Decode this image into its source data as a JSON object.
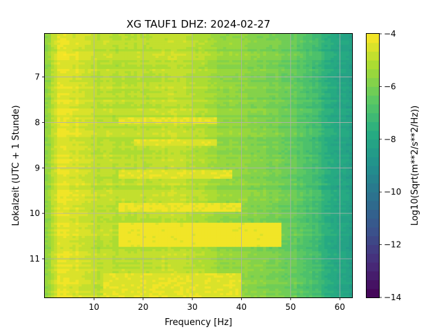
{
  "chart_data": {
    "type": "heatmap",
    "title": "XG TAUF1  DHZ: 2024-02-27",
    "xlabel": "Frequency [Hz]",
    "ylabel": "Lokalzeit (UTC + 1 Stunde)",
    "xlim": [
      0,
      62.5
    ],
    "ylim": [
      11.85,
      6.05
    ],
    "y_inverted": true,
    "x_ticks": [
      10,
      20,
      30,
      40,
      50,
      60
    ],
    "x_tick_labels": [
      "10",
      "20",
      "30",
      "40",
      "50",
      "60"
    ],
    "y_ticks": [
      7,
      8,
      9,
      10,
      11
    ],
    "y_tick_labels": [
      "7",
      "8",
      "9",
      "10",
      "11"
    ],
    "grid": true,
    "colormap": "viridis",
    "colorbar": {
      "label": "Log10(Sqrt(m**2/s**2/Hz))",
      "range": [
        -14,
        -4
      ],
      "ticks": [
        -4,
        -6,
        -8,
        -10,
        -12,
        -14
      ],
      "tick_labels": [
        "−4",
        "−6",
        "−8",
        "−10",
        "−12",
        "−14"
      ],
      "levels": 30
    },
    "frequency_profile": {
      "frequency_hz": [
        0.5,
        3,
        6,
        10,
        15,
        20,
        25,
        30,
        33,
        35,
        40,
        45,
        50,
        53,
        56,
        58,
        60,
        62.5
      ],
      "value": [
        -5.6,
        -4.3,
        -4.5,
        -4.9,
        -5.0,
        -5.0,
        -4.9,
        -5.0,
        -5.2,
        -5.5,
        -5.7,
        -5.9,
        -6.2,
        -6.7,
        -7.2,
        -7.7,
        -8.0,
        -8.3
      ]
    },
    "high_energy_bands": [
      {
        "time": [
          7.9,
          8.05
        ],
        "frequency_hz": [
          15,
          35
        ],
        "value": -4.3
      },
      {
        "time": [
          8.35,
          8.5
        ],
        "frequency_hz": [
          18,
          35
        ],
        "value": -4.4
      },
      {
        "time": [
          9.05,
          9.25
        ],
        "frequency_hz": [
          15,
          38
        ],
        "value": -4.4
      },
      {
        "time": [
          9.75,
          9.95
        ],
        "frequency_hz": [
          15,
          40
        ],
        "value": -4.3
      },
      {
        "time": [
          10.2,
          10.75
        ],
        "frequency_hz": [
          15,
          48
        ],
        "value": -4.2
      },
      {
        "time": [
          11.3,
          11.85
        ],
        "frequency_hz": [
          12,
          40
        ],
        "value": -4.4
      }
    ]
  }
}
